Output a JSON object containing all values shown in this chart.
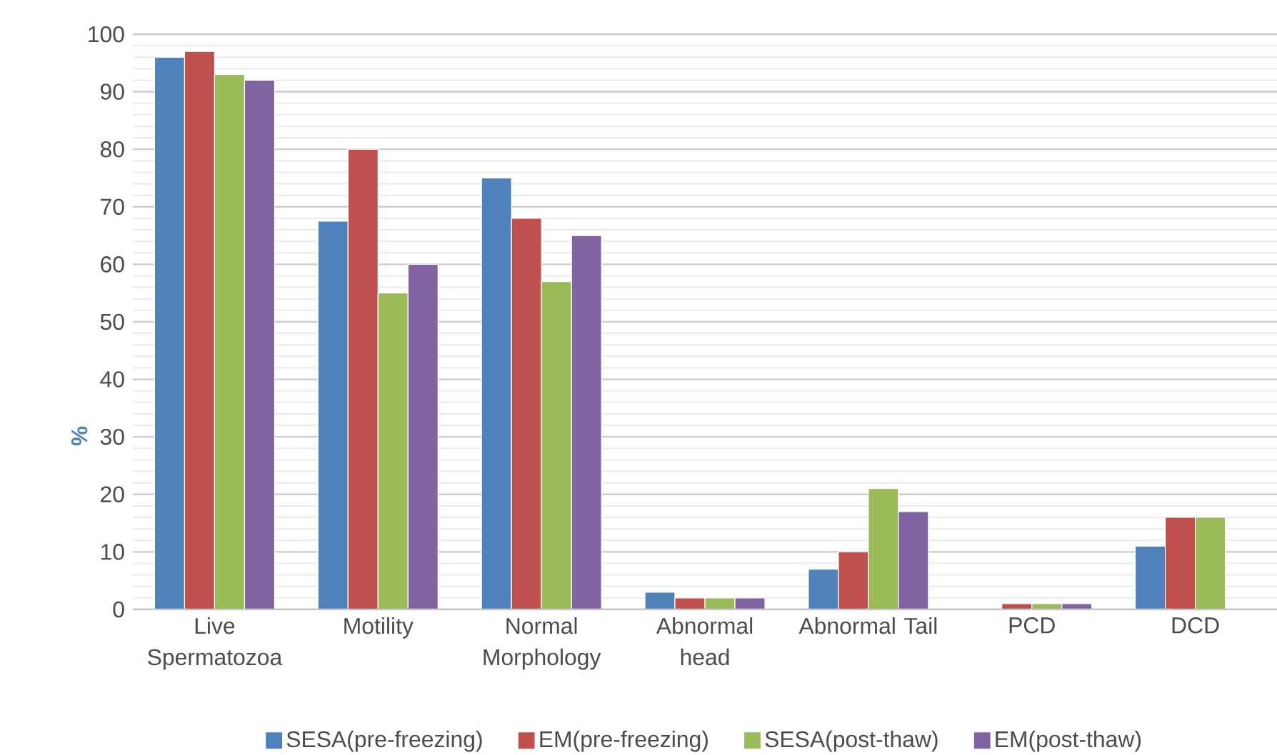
{
  "chart_data": {
    "type": "bar",
    "ylabel": "%",
    "categories": [
      "Live Spermatozoa",
      "Motility",
      "Normal Morphology",
      "Abnormal head",
      "Abnormal Tail",
      "PCD",
      "DCD"
    ],
    "series": [
      {
        "name": "SESA(pre-freezing)",
        "color": "#4f81bd",
        "values": [
          96,
          67.5,
          75,
          3,
          7,
          0,
          11
        ]
      },
      {
        "name": "EM(pre-freezing)",
        "color": "#c0504d",
        "values": [
          97,
          80,
          68,
          2,
          10,
          1,
          16
        ]
      },
      {
        "name": "SESA(post-thaw)",
        "color": "#9bbb59",
        "values": [
          93,
          55,
          57,
          2,
          21,
          1,
          16
        ]
      },
      {
        "name": "EM(post-thaw)",
        "color": "#8064a2",
        "values": [
          92,
          60,
          65,
          2,
          17,
          1,
          0
        ]
      }
    ],
    "ylim": [
      0,
      100
    ],
    "yticks": [
      0,
      10,
      20,
      30,
      40,
      50,
      60,
      70,
      80,
      90,
      100
    ],
    "grid": "y",
    "legend": "bottom"
  }
}
